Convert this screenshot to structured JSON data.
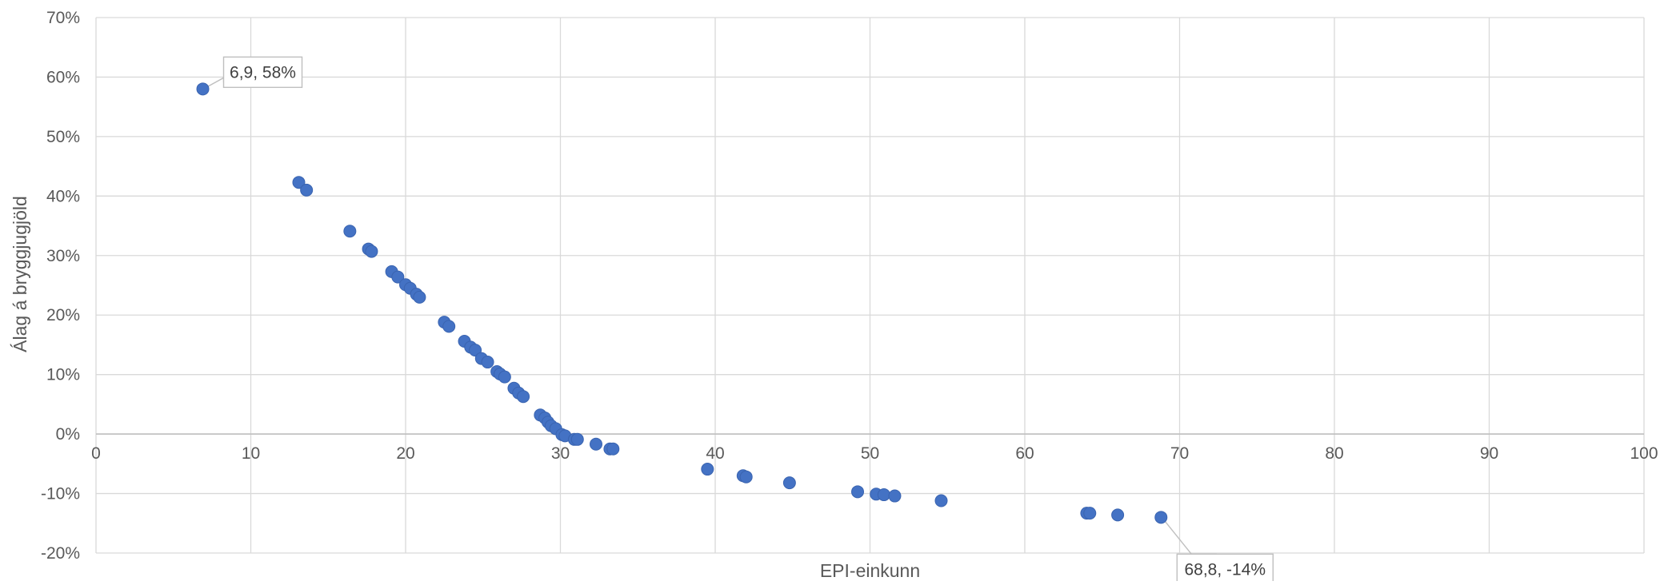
{
  "chart_data": {
    "type": "scatter",
    "xlabel": "EPI-einkunn",
    "ylabel": "Álag á bryggjugjöld",
    "xlim": [
      0,
      100
    ],
    "ylim": [
      -20,
      70
    ],
    "x_ticks": [
      0,
      10,
      20,
      30,
      40,
      50,
      60,
      70,
      80,
      90,
      100
    ],
    "y_ticks": [
      -20,
      -10,
      0,
      10,
      20,
      30,
      40,
      50,
      60,
      70
    ],
    "y_tick_labels": [
      "-20%",
      "-10%",
      "0%",
      "10%",
      "20%",
      "30%",
      "40%",
      "50%",
      "60%",
      "70%"
    ],
    "grid": true,
    "legend": "none",
    "marker_color": "#4472c4",
    "points": [
      {
        "x": 6.9,
        "y": 58
      },
      {
        "x": 13.1,
        "y": 42.3
      },
      {
        "x": 13.6,
        "y": 41
      },
      {
        "x": 16.4,
        "y": 34.1
      },
      {
        "x": 17.6,
        "y": 31.1
      },
      {
        "x": 17.8,
        "y": 30.7
      },
      {
        "x": 19.1,
        "y": 27.3
      },
      {
        "x": 19.5,
        "y": 26.4
      },
      {
        "x": 20.0,
        "y": 25.1
      },
      {
        "x": 20.3,
        "y": 24.5
      },
      {
        "x": 20.7,
        "y": 23.5
      },
      {
        "x": 20.9,
        "y": 23
      },
      {
        "x": 22.5,
        "y": 18.8
      },
      {
        "x": 22.8,
        "y": 18.1
      },
      {
        "x": 23.8,
        "y": 15.6
      },
      {
        "x": 24.2,
        "y": 14.6
      },
      {
        "x": 24.5,
        "y": 14.1
      },
      {
        "x": 24.9,
        "y": 12.7
      },
      {
        "x": 25.3,
        "y": 12.1
      },
      {
        "x": 25.9,
        "y": 10.5
      },
      {
        "x": 26.1,
        "y": 10.1
      },
      {
        "x": 26.4,
        "y": 9.6
      },
      {
        "x": 27.0,
        "y": 7.7
      },
      {
        "x": 27.3,
        "y": 6.9
      },
      {
        "x": 27.6,
        "y": 6.3
      },
      {
        "x": 28.7,
        "y": 3.2
      },
      {
        "x": 29.0,
        "y": 2.7
      },
      {
        "x": 29.2,
        "y": 2
      },
      {
        "x": 29.4,
        "y": 1.4
      },
      {
        "x": 29.7,
        "y": 0.9
      },
      {
        "x": 30.1,
        "y": -0.1
      },
      {
        "x": 30.3,
        "y": -0.3
      },
      {
        "x": 30.9,
        "y": -0.9
      },
      {
        "x": 31.1,
        "y": -0.9
      },
      {
        "x": 32.3,
        "y": -1.7
      },
      {
        "x": 33.2,
        "y": -2.5
      },
      {
        "x": 33.4,
        "y": -2.5
      },
      {
        "x": 39.5,
        "y": -5.9
      },
      {
        "x": 41.8,
        "y": -7
      },
      {
        "x": 42.0,
        "y": -7.2
      },
      {
        "x": 44.8,
        "y": -8.2
      },
      {
        "x": 49.2,
        "y": -9.7
      },
      {
        "x": 50.4,
        "y": -10.1
      },
      {
        "x": 50.9,
        "y": -10.2
      },
      {
        "x": 51.6,
        "y": -10.4
      },
      {
        "x": 54.6,
        "y": -11.2
      },
      {
        "x": 64.0,
        "y": -13.3
      },
      {
        "x": 64.2,
        "y": -13.3
      },
      {
        "x": 66.0,
        "y": -13.6
      },
      {
        "x": 68.8,
        "y": -14
      }
    ],
    "annotations": [
      {
        "text": "6,9, 58%",
        "x": 6.9,
        "y": 58
      },
      {
        "text": "68,8, -14%",
        "x": 68.8,
        "y": -14
      }
    ]
  }
}
